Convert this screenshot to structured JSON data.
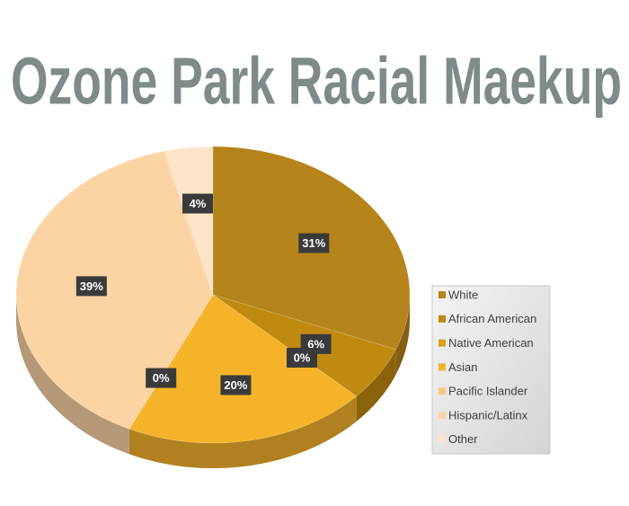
{
  "chart_data": {
    "type": "pie",
    "title": "Ozone Park Racial Maekup",
    "categories": [
      "White",
      "African American",
      "Native American",
      "Asian",
      "Pacific Islander",
      "Hispanic/Latinx",
      "Other"
    ],
    "values": [
      31,
      6,
      0,
      20,
      0,
      39,
      4
    ],
    "value_labels": [
      "31%",
      "6%",
      "0%",
      "20%",
      "0%",
      "39%",
      "4%"
    ],
    "colors": [
      "#b5841a",
      "#c08a10",
      "#e0a01c",
      "#f5b329",
      "#f9c880",
      "#fcd4a4",
      "#fde4c8"
    ],
    "legend": "right"
  }
}
